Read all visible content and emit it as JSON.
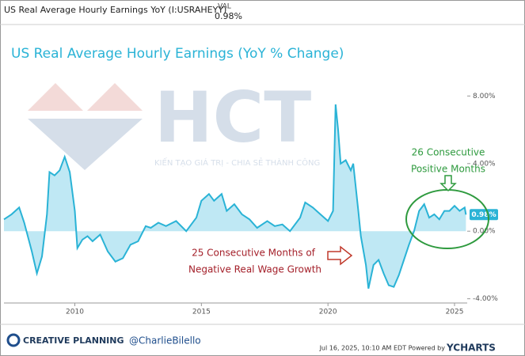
{
  "header": {
    "series_name": "US Real Average Hourly Earnings YoY (I:USRAHEYY)",
    "val_label": "VAL",
    "val": "0.98%"
  },
  "chart_data": {
    "type": "area",
    "title": "US Real Average Hourly Earnings (YoY % Change)",
    "annotations": {
      "positive": [
        "26 Consecutive",
        "Positive Months"
      ],
      "negative": [
        "25 Consecutive Months of",
        "Negative Real Wage Growth"
      ],
      "last_value": "0.98%"
    },
    "x": [
      2007.2,
      2007.5,
      2007.8,
      2008.0,
      2008.3,
      2008.5,
      2008.7,
      2008.9,
      2009.0,
      2009.2,
      2009.4,
      2009.6,
      2009.8,
      2010.0,
      2010.1,
      2010.3,
      2010.5,
      2010.7,
      2011.0,
      2011.3,
      2011.6,
      2011.9,
      2012.2,
      2012.5,
      2012.8,
      2013.0,
      2013.3,
      2013.6,
      2014.0,
      2014.4,
      2014.8,
      2015.0,
      2015.3,
      2015.5,
      2015.8,
      2016.0,
      2016.3,
      2016.6,
      2016.9,
      2017.2,
      2017.6,
      2017.9,
      2018.2,
      2018.5,
      2018.9,
      2019.1,
      2019.4,
      2019.7,
      2020.0,
      2020.2,
      2020.3,
      2020.4,
      2020.5,
      2020.7,
      2020.9,
      2021.0,
      2021.2,
      2021.3,
      2021.5,
      2021.6,
      2021.8,
      2022.0,
      2022.2,
      2022.4,
      2022.6,
      2022.8,
      2023.0,
      2023.2,
      2023.4,
      2023.6,
      2023.8,
      2024.0,
      2024.2,
      2024.4,
      2024.6,
      2024.8,
      2025.0,
      2025.2,
      2025.4,
      2025.45
    ],
    "series": [
      {
        "name": "US Real Average Hourly Earnings YoY",
        "color": "#2ab3d6",
        "fill": "#bfe8f4",
        "values": [
          0.7,
          1.0,
          1.4,
          0.5,
          -1.2,
          -2.5,
          -1.5,
          1.0,
          3.5,
          3.3,
          3.6,
          4.4,
          3.5,
          1.2,
          -1.0,
          -0.5,
          -0.3,
          -0.6,
          -0.2,
          -1.2,
          -1.8,
          -1.6,
          -0.8,
          -0.6,
          0.3,
          0.2,
          0.5,
          0.3,
          0.6,
          0.0,
          0.8,
          1.8,
          2.2,
          1.8,
          2.2,
          1.2,
          1.6,
          1.0,
          0.7,
          0.2,
          0.6,
          0.3,
          0.4,
          0.0,
          0.8,
          1.7,
          1.4,
          1.0,
          0.6,
          1.2,
          7.5,
          6.0,
          4.0,
          4.2,
          3.6,
          4.0,
          1.2,
          -0.3,
          -2.0,
          -3.4,
          -2.0,
          -1.7,
          -2.5,
          -3.2,
          -3.3,
          -2.6,
          -1.7,
          -0.8,
          0.0,
          1.2,
          1.6,
          0.8,
          1.0,
          0.7,
          1.2,
          1.2,
          1.5,
          1.2,
          1.4,
          0.98
        ]
      }
    ],
    "xlim": [
      2007.2,
      2025.5
    ],
    "xticks": [
      2010,
      2015,
      2020,
      2025
    ],
    "ylim": [
      -4.25,
      9
    ],
    "yticks": [
      {
        "value": -4,
        "label": "-4.00%"
      },
      {
        "value": 0,
        "label": "0.00%"
      },
      {
        "value": 4,
        "label": "4.00%"
      },
      {
        "value": 8,
        "label": "8.00%"
      }
    ],
    "grid": false
  },
  "watermark": {
    "logo": "HCT",
    "slogan": "KIẾN TẠO GIÁ TRỊ - CHIA SẺ THÀNH CÔNG"
  },
  "footer": {
    "brand": "CREATIVE PLANNING",
    "handle": "@CharlieBilello",
    "timestamp": "Jul 16, 2025, 10:10 AM EDT Powered by",
    "source": "YCHARTS"
  }
}
